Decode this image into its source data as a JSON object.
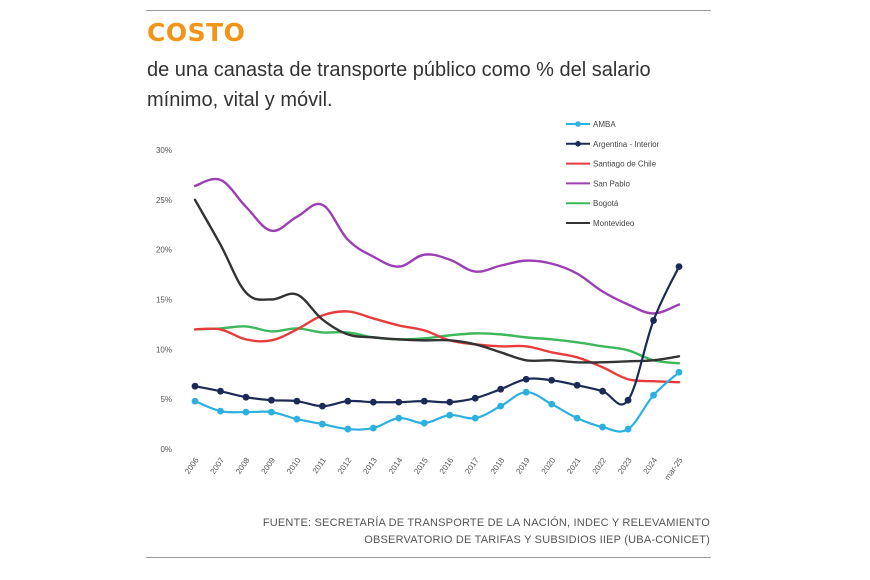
{
  "header": {
    "title": "COSTO",
    "subtitle": "de una canasta de transporte público como % del salario mínimo, vital y móvil."
  },
  "footer": {
    "source_line1": "FUENTE: SECRETARÍA DE TRANSPORTE DE LA NACIÓN, INDEC Y RELEVAMIENTO",
    "source_line2": "OBSERVATORIO DE TARIFAS Y SUBSIDIOS IIEP (UBA-CONICET)"
  },
  "colors": {
    "title": "#f29418",
    "rule": "#9a9a9a"
  },
  "chart_data": {
    "type": "line",
    "title": "",
    "xlabel": "",
    "ylabel": "",
    "ylim": [
      0,
      30
    ],
    "yticks": [
      "0%",
      "5%",
      "10%",
      "15%",
      "20%",
      "25%",
      "30%"
    ],
    "ytick_values": [
      0,
      5,
      10,
      15,
      20,
      25,
      30
    ],
    "grid": false,
    "legend_position": "top-right",
    "categories": [
      "2006",
      "2007",
      "2008",
      "2009",
      "2010",
      "2011",
      "2012",
      "2013",
      "2014",
      "2015",
      "2016",
      "2017",
      "2018",
      "2019",
      "2020",
      "2021",
      "2022",
      "2023",
      "2024",
      "mar-25"
    ],
    "series": [
      {
        "name": "AMBA",
        "color": "#2bb0df",
        "markers": true,
        "values": [
          4.8,
          3.8,
          3.7,
          3.7,
          3.0,
          2.5,
          2.0,
          2.1,
          3.1,
          2.6,
          3.4,
          3.1,
          4.3,
          5.7,
          4.5,
          3.1,
          2.2,
          2.0,
          5.4,
          7.7
        ]
      },
      {
        "name": "Argentina - Interior",
        "color": "#1d2a57",
        "markers": true,
        "values": [
          6.3,
          5.8,
          5.2,
          4.9,
          4.8,
          4.3,
          4.8,
          4.7,
          4.7,
          4.8,
          4.7,
          5.1,
          6.0,
          7.0,
          6.9,
          6.4,
          5.8,
          4.9,
          12.9,
          18.3
        ]
      },
      {
        "name": "Santiago de Chile",
        "color": "#e63c3c",
        "markers": false,
        "values": [
          12.0,
          12.0,
          11.0,
          10.9,
          12.0,
          13.4,
          13.8,
          13.1,
          12.4,
          11.9,
          10.9,
          10.5,
          10.3,
          10.3,
          9.7,
          9.2,
          8.2,
          7.0,
          6.8,
          6.7
        ]
      },
      {
        "name": "San Pablo",
        "color": "#9b3fb3",
        "markers": false,
        "values": [
          26.4,
          27.0,
          24.3,
          21.9,
          23.3,
          24.5,
          21.0,
          19.3,
          18.3,
          19.5,
          19.0,
          17.8,
          18.4,
          18.9,
          18.6,
          17.6,
          15.8,
          14.5,
          13.6,
          14.5
        ]
      },
      {
        "name": "Bogotá",
        "color": "#3cb85a",
        "markers": false,
        "values": [
          12.0,
          12.1,
          12.3,
          11.8,
          12.1,
          11.7,
          11.7,
          11.2,
          11.0,
          11.1,
          11.4,
          11.6,
          11.5,
          11.2,
          11.0,
          10.7,
          10.3,
          9.9,
          8.9,
          8.6
        ]
      },
      {
        "name": "Montevideo",
        "color": "#333333",
        "markers": false,
        "values": [
          25.0,
          20.5,
          15.7,
          15.0,
          15.5,
          13.0,
          11.5,
          11.2,
          11.0,
          10.9,
          10.9,
          10.5,
          9.7,
          8.9,
          8.9,
          8.7,
          8.7,
          8.8,
          8.9,
          9.3
        ]
      }
    ]
  }
}
